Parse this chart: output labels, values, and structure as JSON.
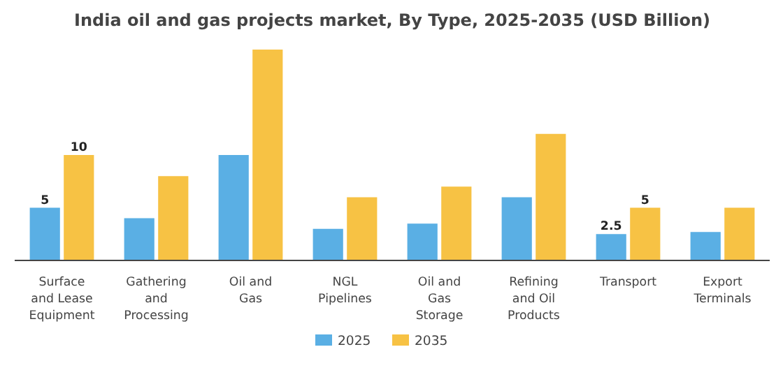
{
  "chart_data": {
    "type": "bar",
    "title": "India oil and gas projects market, By Type, 2025-2035 (USD Billion)",
    "categories": [
      "Surface and Lease Equipment",
      "Gathering and Processing",
      "Oil and Gas",
      "NGL Pipelines",
      "Oil and Gas Storage",
      "Refining and Oil Products",
      "Transport",
      "Export Terminals"
    ],
    "series": [
      {
        "name": "2025",
        "color": "#5aafe4",
        "values": [
          5,
          4,
          10,
          3,
          3.5,
          6,
          2.5,
          2.7
        ],
        "value_labels": [
          "5",
          null,
          null,
          null,
          null,
          null,
          "2.5",
          null
        ]
      },
      {
        "name": "2035",
        "color": "#f7c244",
        "values": [
          10,
          8,
          20,
          6,
          7,
          12,
          5,
          5
        ],
        "value_labels": [
          "10",
          null,
          null,
          null,
          null,
          null,
          "5",
          null
        ]
      }
    ],
    "legend": "bottom"
  }
}
